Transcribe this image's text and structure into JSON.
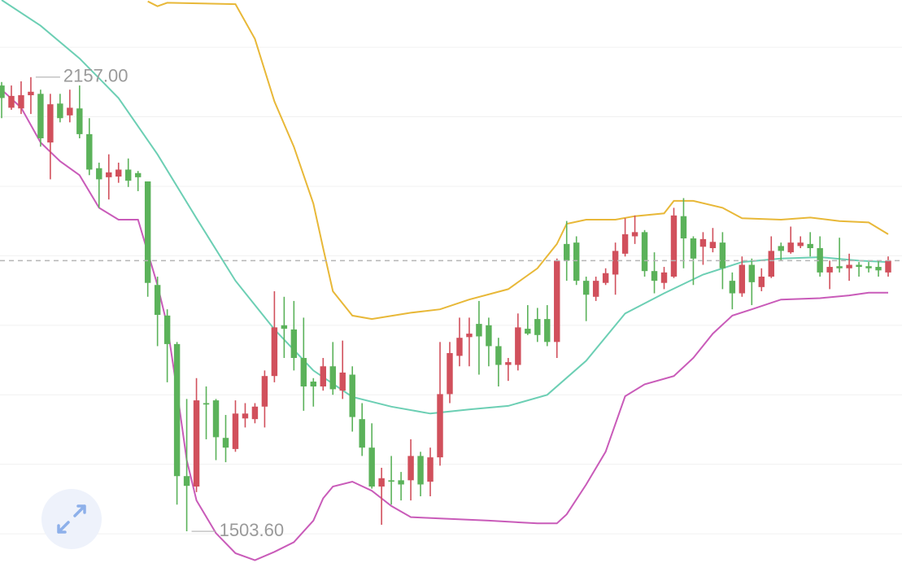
{
  "chart_data": {
    "type": "candlestick",
    "ylim": [
      1458,
      2268
    ],
    "grid_lines": [
      1500,
      1600,
      1700,
      1800,
      1900,
      2000,
      2100,
      2200
    ],
    "up_color": "#d1505c",
    "down_color": "#5bb25a",
    "open": [
      2145,
      2113,
      2112,
      2131,
      2133,
      2063,
      2119,
      2102,
      2112,
      2075,
      2026,
      2013,
      2014,
      2024,
      2019,
      2007,
      1858,
      1814,
      1773,
      1583,
      1568,
      1688,
      1692,
      1638,
      1622,
      1666,
      1665,
      1683,
      1727,
      1800,
      1794,
      1753,
      1719,
      1712,
      1741,
      1706,
      1729,
      1665,
      1624,
      1568,
      1577,
      1577,
      1577,
      1612,
      1575,
      1610,
      1701,
      1756,
      1783,
      1802,
      1800,
      1770,
      1743,
      1743,
      1795,
      1809,
      1809,
      1776,
      1917,
      1919,
      1864,
      1841,
      1861,
      1873,
      1903,
      1928,
      1934,
      1878,
      1861,
      1870,
      1957,
      1925,
      1913,
      1911,
      1919,
      1864,
      1846,
      1887,
      1855,
      1870,
      1914,
      1905,
      1914,
      1917,
      1911,
      1876,
      1885,
      1882,
      1887,
      1885,
      1884,
      1876
    ],
    "high": [
      2150,
      2145,
      2151,
      2157,
      2139,
      2133,
      2133,
      2139,
      2145,
      2098,
      2034,
      2046,
      2034,
      2040,
      2022,
      2007,
      1870,
      1823,
      1776,
      1694,
      1724,
      1712,
      1694,
      1671,
      1692,
      1688,
      1688,
      1735,
      1849,
      1841,
      1835,
      1811,
      1724,
      1753,
      1776,
      1778,
      1741,
      1688,
      1659,
      1595,
      1612,
      1589,
      1636,
      1618,
      1624,
      1776,
      1776,
      1811,
      1811,
      1835,
      1811,
      1782,
      1753,
      1817,
      1829,
      1825,
      1829,
      1896,
      1950,
      1928,
      1870,
      1870,
      1882,
      1919,
      1954,
      1958,
      1937,
      1905,
      1884,
      1969,
      1983,
      1928,
      1934,
      1940,
      1934,
      1876,
      1899,
      1896,
      1882,
      1928,
      1919,
      1942,
      1928,
      1934,
      1928,
      1893,
      1926,
      1903,
      1891,
      1891,
      1893,
      1899
    ],
    "low": [
      2098,
      2110,
      2104,
      2104,
      2057,
      2010,
      2092,
      2092,
      2069,
      2016,
      1969,
      1981,
      2005,
      1999,
      1993,
      1841,
      1770,
      1718,
      1542,
      1503.6,
      1560,
      1636,
      1606,
      1603,
      1618,
      1653,
      1659,
      1653,
      1718,
      1753,
      1735,
      1677,
      1683,
      1706,
      1700,
      1694,
      1647,
      1612,
      1565,
      1513,
      1542,
      1548,
      1548,
      1554,
      1554,
      1598,
      1688,
      1741,
      1741,
      1729,
      1741,
      1712,
      1720,
      1735,
      1786,
      1776,
      1770,
      1753,
      1864,
      1858,
      1806,
      1835,
      1858,
      1844,
      1899,
      1917,
      1870,
      1846,
      1852,
      1868,
      1882,
      1858,
      1887,
      1905,
      1852,
      1823,
      1841,
      1829,
      1849,
      1868,
      1893,
      1903,
      1911,
      1899,
      1870,
      1852,
      1876,
      1864,
      1870,
      1876,
      1870,
      1870
    ],
    "close": [
      2127,
      2130,
      2131,
      2136,
      2069,
      2118,
      2098,
      2113,
      2075,
      2024,
      2010,
      2020,
      2024,
      2008,
      2013,
      1861,
      1815,
      1773,
      1583,
      1569,
      1692,
      1686,
      1639,
      1624,
      1673,
      1673,
      1683,
      1727,
      1797,
      1795,
      1753,
      1712,
      1712,
      1741,
      1708,
      1732,
      1668,
      1624,
      1568,
      1580,
      1575,
      1571,
      1612,
      1571,
      1610,
      1701,
      1760,
      1782,
      1788,
      1784,
      1770,
      1743,
      1747,
      1797,
      1788,
      1786,
      1776,
      1893,
      1893,
      1864,
      1844,
      1864,
      1875,
      1907,
      1931,
      1934,
      1878,
      1864,
      1876,
      1958,
      1925,
      1896,
      1924,
      1920,
      1882,
      1846,
      1887,
      1862,
      1870,
      1907,
      1907,
      1919,
      1919,
      1911,
      1876,
      1884,
      1882,
      1887,
      1884,
      1882,
      1879,
      1893
    ],
    "bands": [
      {
        "color": "#e8b838",
        "x": [
          15,
          16,
          17,
          24,
          26,
          28,
          30,
          32,
          33,
          34,
          36,
          38,
          42,
          45,
          48,
          52,
          55,
          57,
          58,
          60,
          63,
          65,
          68,
          69,
          71,
          74,
          76,
          80,
          83,
          86,
          89,
          91
        ],
        "values": [
          2266,
          2259,
          2264,
          2262,
          2212,
          2122,
          2057,
          1975,
          1911,
          1849,
          1814,
          1809,
          1818,
          1823,
          1837,
          1852,
          1882,
          1917,
          1946,
          1952,
          1952,
          1957,
          1961,
          1979,
          1979,
          1969,
          1954,
          1952,
          1955,
          1950,
          1948,
          1931
        ]
      },
      {
        "color": "#6ccfb4",
        "x": [
          0,
          4,
          8,
          12,
          16,
          20,
          24,
          28,
          32,
          36,
          40,
          44,
          48,
          52,
          56,
          60,
          64,
          68,
          72,
          76,
          80,
          84,
          88,
          91
        ],
        "values": [
          2268,
          2231,
          2184,
          2127,
          2046,
          1954,
          1864,
          1794,
          1735,
          1697,
          1683,
          1673,
          1679,
          1684,
          1700,
          1749,
          1817,
          1846,
          1873,
          1891,
          1896,
          1898,
          1893,
          1891
        ]
      },
      {
        "color": "#c95bb9",
        "x": [
          0,
          2,
          4,
          6,
          8,
          10,
          12,
          14,
          16,
          17,
          18,
          19,
          20,
          22,
          24,
          26,
          28,
          30,
          32,
          33,
          34,
          36,
          38,
          40,
          42,
          45,
          50,
          55,
          57,
          58,
          60,
          62,
          64,
          66,
          69,
          71,
          73,
          75,
          77,
          80,
          84,
          87,
          89,
          91
        ],
        "values": [
          2139,
          2113,
          2063,
          2036,
          2016,
          1969,
          1952,
          1952,
          1858,
          1800,
          1706,
          1606,
          1548,
          1501,
          1472,
          1462,
          1474,
          1488,
          1519,
          1551,
          1568,
          1575,
          1562,
          1540,
          1524,
          1522,
          1519,
          1515,
          1515,
          1528,
          1571,
          1618,
          1698,
          1715,
          1727,
          1753,
          1788,
          1814,
          1823,
          1837,
          1839,
          1843,
          1847,
          1847
        ]
      }
    ],
    "high_label": "2157.00",
    "low_label": "1503.60"
  }
}
